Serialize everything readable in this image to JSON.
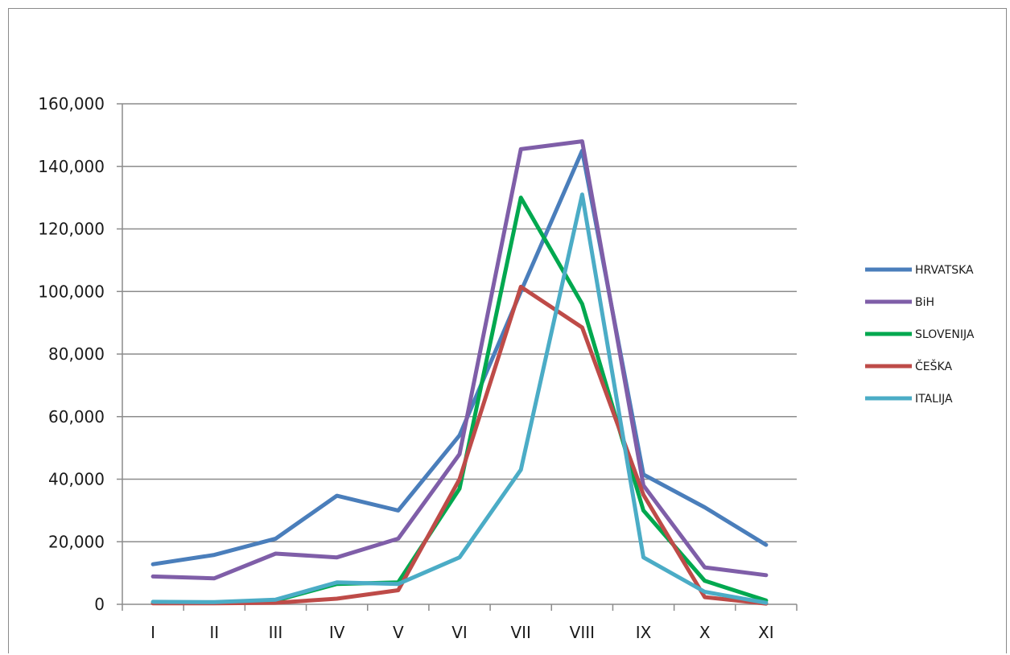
{
  "chart_data": {
    "type": "line",
    "title": "",
    "xlabel": "",
    "ylabel": "",
    "categories": [
      "I",
      "II",
      "III",
      "IV",
      "V",
      "VI",
      "VII",
      "VIII",
      "IX",
      "X",
      "XI"
    ],
    "ylim": [
      0,
      160000
    ],
    "ytick_values": [
      0,
      20000,
      40000,
      60000,
      80000,
      100000,
      120000,
      140000,
      160000
    ],
    "ytick_labels": [
      "0",
      "20,000",
      "40,000",
      "60,000",
      "80,000",
      "100,000",
      "120,000",
      "140,000",
      "160,000"
    ],
    "grid": "horizontal",
    "legend_position": "right",
    "series": [
      {
        "name": "HRVATSKA",
        "color": "#4a7ebb",
        "values": [
          12800,
          15800,
          21000,
          34700,
          30000,
          54000,
          100000,
          145000,
          41500,
          31000,
          19000
        ]
      },
      {
        "name": "BiH",
        "color": "#7f5ea8",
        "values": [
          8900,
          8300,
          16200,
          15000,
          21000,
          48000,
          145500,
          148000,
          38000,
          11800,
          9300
        ]
      },
      {
        "name": "SLOVENIJA",
        "color": "#00a84f",
        "values": [
          600,
          600,
          1200,
          6500,
          7000,
          37000,
          130000,
          96000,
          30000,
          7500,
          1200
        ]
      },
      {
        "name": "ČEŠKA",
        "color": "#be4b48",
        "values": [
          300,
          300,
          500,
          1800,
          4500,
          40000,
          101500,
          88500,
          35000,
          2300,
          200
        ]
      },
      {
        "name": "ITALIJA",
        "color": "#4bacc6",
        "values": [
          800,
          700,
          1500,
          7000,
          6500,
          15000,
          43000,
          131000,
          15000,
          4000,
          500
        ]
      }
    ]
  }
}
